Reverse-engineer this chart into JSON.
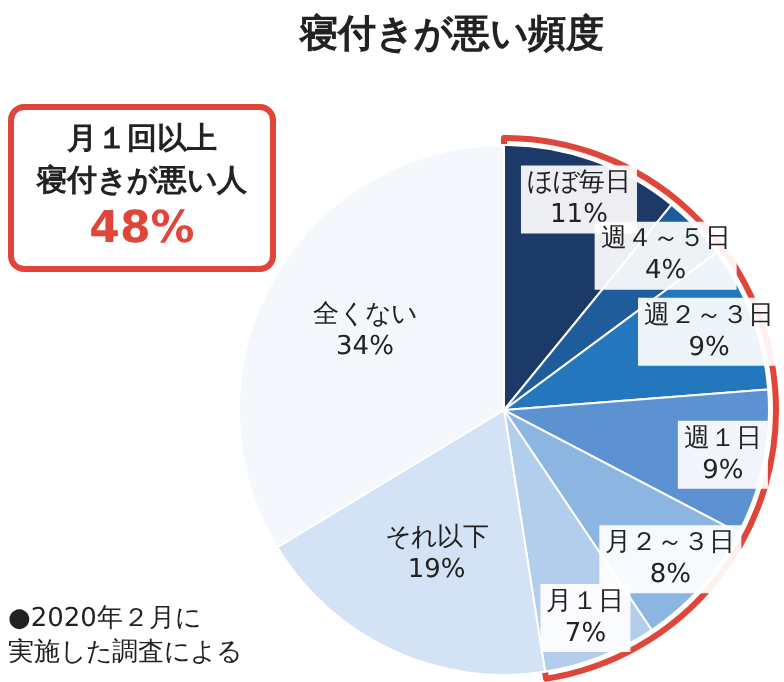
{
  "chart_data": {
    "type": "pie",
    "title": "寝付きが悪い頻度",
    "categories": [
      "ほぼ毎日",
      "週４～５日",
      "週２～３日",
      "週１日",
      "月２～３日",
      "月１日",
      "それ以下",
      "全くない"
    ],
    "values": [
      11,
      4,
      9,
      9,
      8,
      7,
      19,
      34
    ],
    "colors": [
      "#1b3a68",
      "#1f5c9c",
      "#2476bd",
      "#5d92d2",
      "#8db5e2",
      "#b3cdec",
      "#d3e2f4",
      "#f4f7fb"
    ],
    "value_labels": [
      "11%",
      "4%",
      "9%",
      "9%",
      "8%",
      "7%",
      "19%",
      "34%"
    ],
    "legend": false,
    "annotations": [
      "月１回以上",
      "寝付きが悪い人",
      "48%",
      "●2020年２月に",
      "実施した調査による"
    ]
  }
}
